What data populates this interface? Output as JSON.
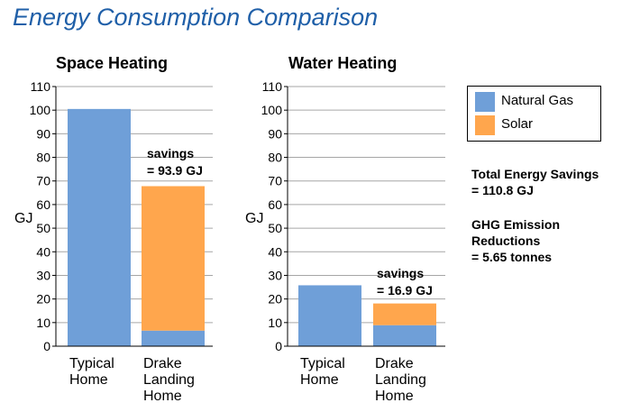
{
  "title": "Energy Consumption Comparison",
  "legend": [
    {
      "label": "Natural Gas",
      "color": "#6f9fd8"
    },
    {
      "label": "Solar",
      "color": "#ffa64d"
    }
  ],
  "summary": {
    "total_line1": "Total Energy Savings",
    "total_line2": "= 110.8 GJ",
    "ghg_line1": "GHG Emission Reductions",
    "ghg_line2": "= 5.65 tonnes"
  },
  "chart_data": [
    {
      "type": "bar",
      "stacked": true,
      "title": "Space Heating",
      "ylabel": "GJ",
      "xlabel": "",
      "ylim": [
        0,
        110
      ],
      "yticks": [
        0,
        10,
        20,
        30,
        40,
        50,
        60,
        70,
        80,
        90,
        100,
        110
      ],
      "grid": true,
      "categories": [
        [
          "Typical",
          "Home"
        ],
        [
          "Drake",
          "Landing",
          "Home"
        ]
      ],
      "series": [
        {
          "name": "Natural Gas",
          "values": [
            100.5,
            6.6
          ]
        },
        {
          "name": "Solar",
          "values": [
            0,
            61.2
          ]
        }
      ],
      "annotation": {
        "line1": "savings",
        "line2": "= 93.9 GJ"
      }
    },
    {
      "type": "bar",
      "stacked": true,
      "title": "Water Heating",
      "ylabel": "GJ",
      "xlabel": "",
      "ylim": [
        0,
        110
      ],
      "yticks": [
        0,
        10,
        20,
        30,
        40,
        50,
        60,
        70,
        80,
        90,
        100,
        110
      ],
      "grid": true,
      "categories": [
        [
          "Typical",
          "Home"
        ],
        [
          "Drake",
          "Landing",
          "Home"
        ]
      ],
      "series": [
        {
          "name": "Natural Gas",
          "values": [
            25.8,
            8.9
          ]
        },
        {
          "name": "Solar",
          "values": [
            0,
            9.2
          ]
        }
      ],
      "annotation": {
        "line1": "savings",
        "line2": "= 16.9 GJ"
      }
    }
  ]
}
